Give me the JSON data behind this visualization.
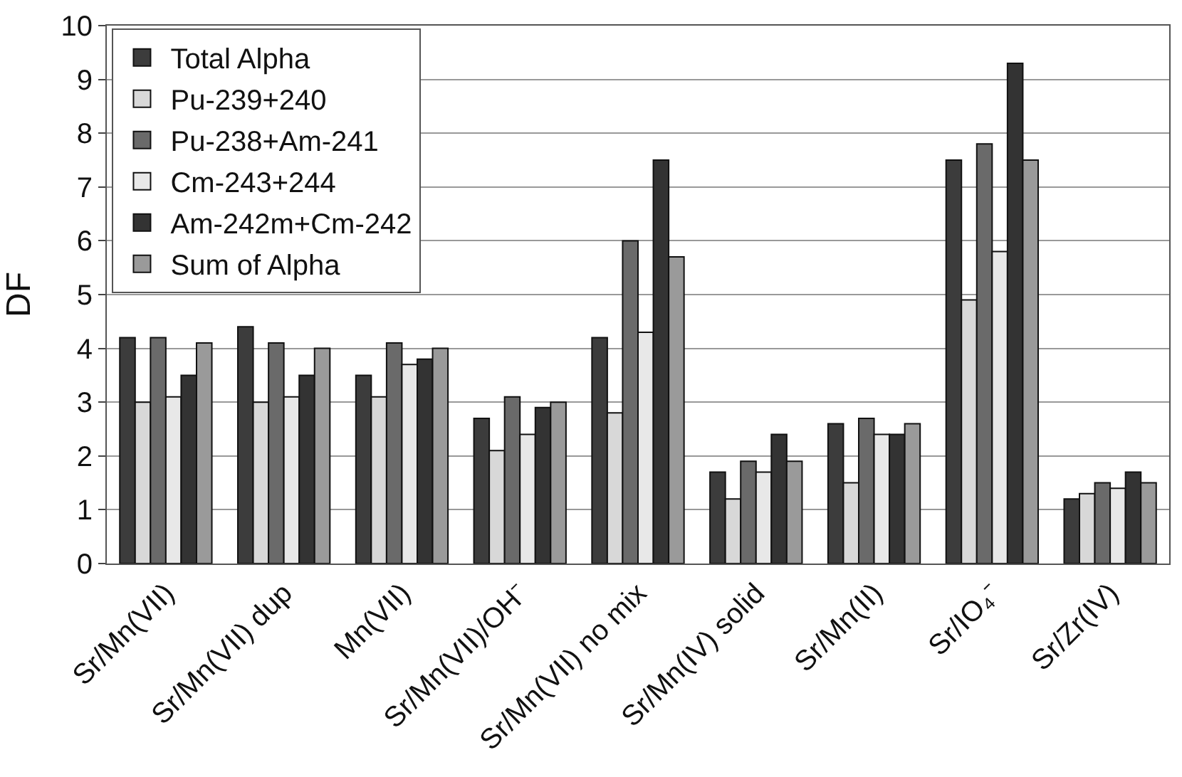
{
  "chart_data": {
    "type": "bar",
    "ylabel": "DF",
    "categories": [
      "Sr/Mn(VII)",
      "Sr/Mn(VII) dup",
      "Mn(VII)",
      "Sr/Mn(VII)/OH⁻",
      "Sr/Mn(VII) no mix",
      "Sr/Mn(IV) solid",
      "Sr/Mn(II)",
      "Sr/IO₄⁻",
      "Sr/Zr(IV)"
    ],
    "series": [
      {
        "name": "Total Alpha",
        "color": "#3c3c3c",
        "values": [
          4.2,
          4.4,
          3.5,
          2.7,
          4.2,
          1.7,
          2.6,
          7.5,
          1.2
        ]
      },
      {
        "name": "Pu-239+240",
        "color": "#d8d8d8",
        "values": [
          3.0,
          3.0,
          3.1,
          2.1,
          2.8,
          1.2,
          1.5,
          4.9,
          1.3
        ]
      },
      {
        "name": "Pu-238+Am-241",
        "color": "#6a6a6a",
        "values": [
          4.2,
          4.1,
          4.1,
          3.1,
          6.0,
          1.9,
          2.7,
          7.8,
          1.5
        ]
      },
      {
        "name": "Cm-243+244",
        "color": "#e8e8e8",
        "values": [
          3.1,
          3.1,
          3.7,
          2.4,
          4.3,
          1.7,
          2.4,
          5.8,
          1.4
        ]
      },
      {
        "name": "Am-242m+Cm-242",
        "color": "#333333",
        "values": [
          3.5,
          3.5,
          3.8,
          2.9,
          7.5,
          2.4,
          2.4,
          9.3,
          1.7
        ]
      },
      {
        "name": "Sum of Alpha",
        "color": "#9a9a9a",
        "values": [
          4.1,
          4.0,
          4.0,
          3.0,
          5.7,
          1.9,
          2.6,
          7.5,
          1.5
        ]
      }
    ],
    "ylim": [
      0,
      10
    ],
    "yticks": [
      0,
      1,
      2,
      3,
      4,
      5,
      6,
      7,
      8,
      9,
      10
    ],
    "grid": "y",
    "legend": "top left"
  }
}
